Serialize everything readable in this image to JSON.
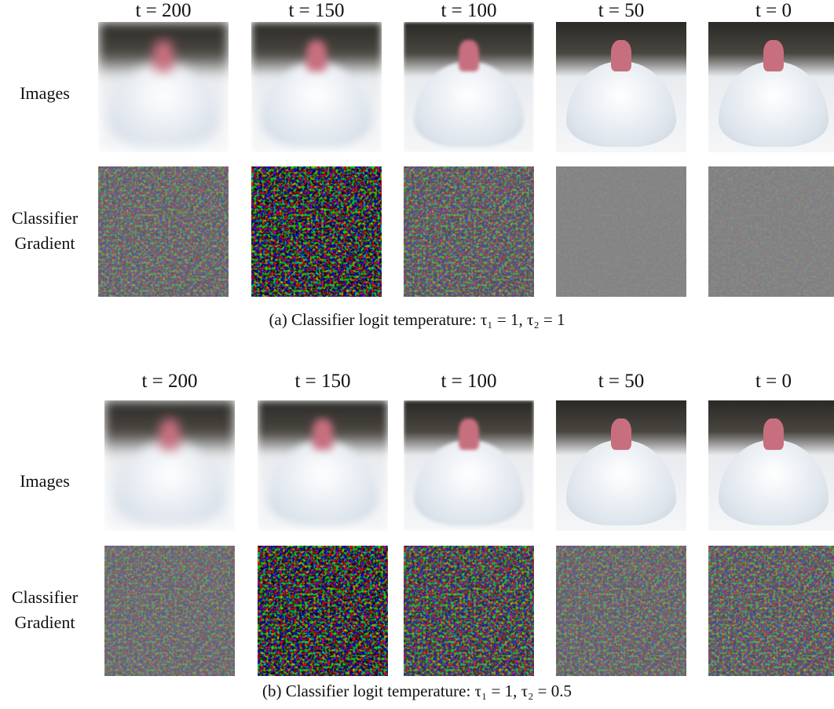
{
  "panels": [
    {
      "columns": [
        "t = 200",
        "t = 150",
        "t = 100",
        "t = 50",
        "t = 0"
      ],
      "rows": [
        "Images",
        "Classifier Gradient"
      ],
      "caption": "(a) Classifier logit temperature: τ₁ = 1, τ₂ = 1"
    },
    {
      "columns": [
        "t = 200",
        "t = 150",
        "t = 100",
        "t = 50",
        "t = 0"
      ],
      "rows": [
        "Images",
        "Classifier Gradient"
      ],
      "caption": "(b) Classifier logit temperature: τ₁ = 1, τ₂ = 0.5"
    }
  ]
}
